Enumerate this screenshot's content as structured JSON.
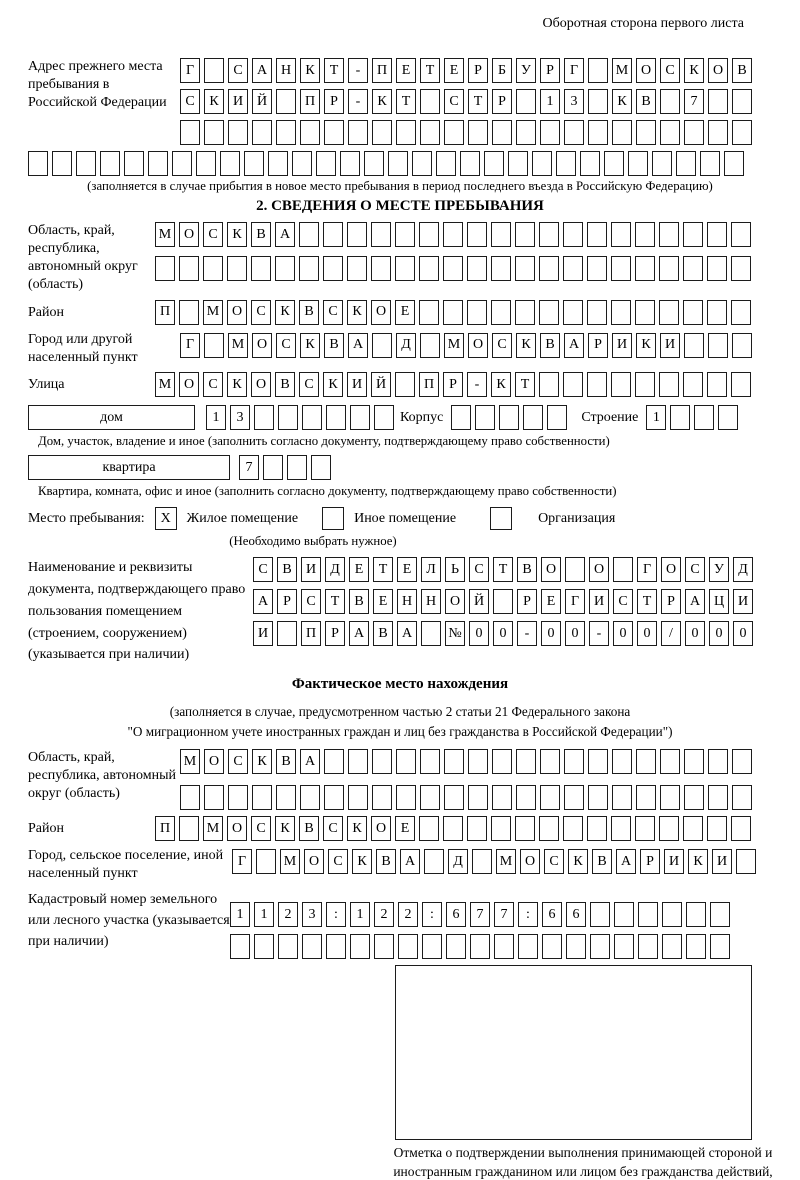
{
  "page": {
    "header_note": "Оборотная сторона первого листа"
  },
  "prev_address": {
    "label": "Адрес прежнего места пребывания в Российской Федерации",
    "rows": [
      {
        "text": "Г САНКТ-ПЕТЕРБУРГ МОСКОВ",
        "len": 24
      },
      {
        "text": "СКИЙ ПР-КТ СТР 13 КВ 7",
        "len": 24
      },
      {
        "text": "",
        "len": 24
      }
    ],
    "full_row": {
      "text": "",
      "len": 30
    },
    "caption": "(заполняется в случае прибытия в новое место пребывания в период последнего въезда в Российскую Федерацию)"
  },
  "section2": {
    "title": "2. СВЕДЕНИЯ О МЕСТЕ ПРЕБЫВАНИЯ",
    "region": {
      "label": "Область, край, республика, автономный округ (область)",
      "rows": [
        {
          "text": "МОСКВА",
          "len": 25
        },
        {
          "text": "",
          "len": 25
        }
      ]
    },
    "district": {
      "label": "Район",
      "row": {
        "text": "П МОСКВСКОЕ",
        "len": 25
      }
    },
    "city": {
      "label": "Город или другой населенный пункт",
      "row": {
        "text": "Г МОСКВА Д МОСКВАРИКИ",
        "len": 24
      }
    },
    "street": {
      "label": "Улица",
      "row": {
        "text": "МОСКОВСКИЙ ПР-КТ",
        "len": 25
      }
    },
    "house": {
      "box_label": "дом",
      "cells": {
        "text": "13",
        "len": 8
      },
      "korpus_label": "Корпус",
      "korpus_cells": {
        "text": "",
        "len": 5
      },
      "stroenie_label": "Строение",
      "stroenie_cells": {
        "text": "1",
        "len": 4
      },
      "caption": "Дом, участок, владение и иное (заполнить согласно документу, подтверждающему право собственности)"
    },
    "apartment": {
      "box_label": "квартира",
      "cells": {
        "text": "7",
        "len": 4
      },
      "caption": "Квартира, комната, офис и иное (заполнить согласно документу, подтверждающему право собственности)"
    },
    "stay_type": {
      "label": "Место пребывания:",
      "options": [
        {
          "label": "Жилое помещение",
          "mark": "X"
        },
        {
          "label": "Иное помещение",
          "mark": ""
        },
        {
          "label": "Организация",
          "mark": ""
        }
      ],
      "caption": "(Необходимо выбрать нужное)"
    },
    "document": {
      "label": "Наименование и реквизиты документа, подтверждающего право пользования помещением (строением, сооружением) (указывается при наличии)",
      "rows": [
        {
          "text": "СВИДЕТЕЛЬСТВО О ГОСУД",
          "len": 21
        },
        {
          "text": "АРСТВЕННОЙ РЕГИСТРАЦИ",
          "len": 21
        },
        {
          "text": "И ПРАВА №00-00-00/000",
          "len": 21
        }
      ]
    }
  },
  "actual_location": {
    "title": "Фактическое место нахождения",
    "caption_line1": "(заполняется в случае, предусмотренном частью 2 статьи 21 Федерального закона",
    "caption_line2": "\"О миграционном учете иностранных граждан и лиц без гражданства в Российской Федерации\")",
    "region": {
      "label": "Область, край, республика, автономный округ (область)",
      "rows": [
        {
          "text": "МОСКВА",
          "len": 24
        },
        {
          "text": "",
          "len": 24
        }
      ]
    },
    "district": {
      "label": "Район",
      "row": {
        "text": "П МОСКВСКОЕ",
        "len": 25
      }
    },
    "city": {
      "label": "Город, сельское поселение, иной населенный пункт",
      "row": {
        "text": "Г МОСКВА Д МОСКВАРИКИ",
        "len": 22
      }
    },
    "cadastre": {
      "label": "Кадастровый номер земельного или лесного участка (указывается при наличии)",
      "rows": [
        {
          "text": "1123:122:677:66",
          "len": 21
        },
        {
          "text": "",
          "len": 21
        }
      ]
    },
    "stamp_caption": "Отметка о подтверждении выполнения принимающей стороной и иностранным гражданином или лицом без гражданства действий, необходимых для его постановки на учет по месту пребывания"
  }
}
